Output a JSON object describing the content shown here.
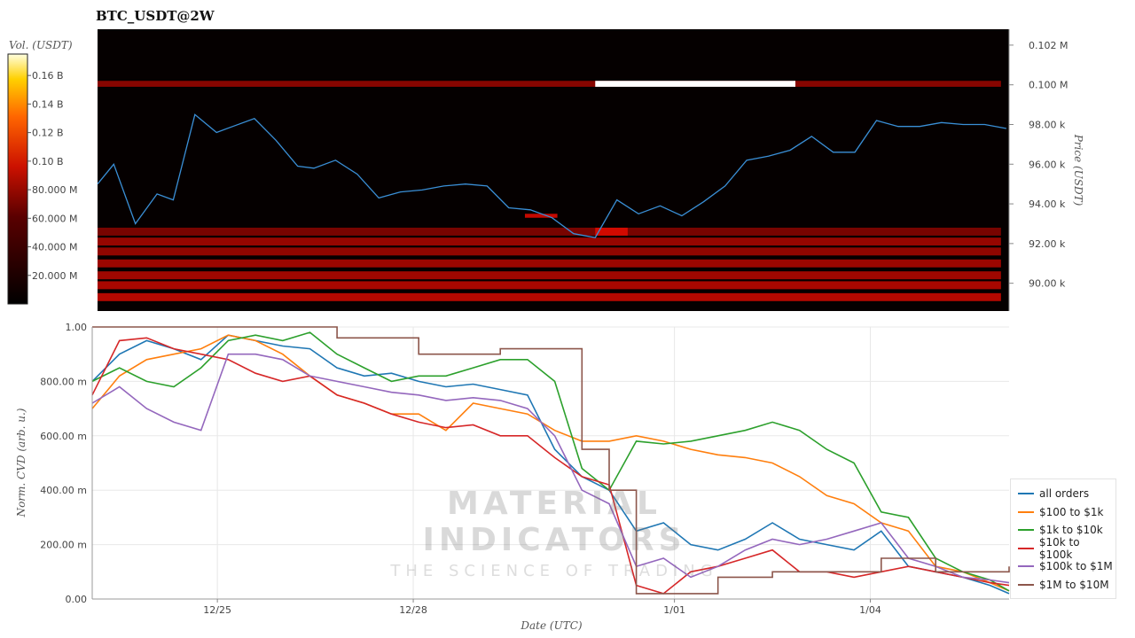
{
  "title": "BTC_USDT@2W",
  "colors": {
    "all_orders": "#1f77b4",
    "r100_1k": "#ff7f0e",
    "r1k_10k": "#2ca02c",
    "r10k_100k": "#d62728",
    "r100k_1M": "#9467bd",
    "r1M_10M": "#8c564b",
    "price_line": "#3a8fd6"
  },
  "watermark": {
    "main": "MATERIAL INDICATORS",
    "sub": "THE SCIENCE OF TRADING"
  },
  "chart_data": [
    {
      "type": "heatmap",
      "title": "BTC_USDT@2W",
      "ylabel": "Price (USDT)",
      "colorbar_label": "Vol. (USDT)",
      "colorbar_ticks": [
        "20.000 M",
        "40.000 M",
        "60.000 M",
        "80.000 M",
        "0.10 B",
        "0.12 B",
        "0.14 B",
        "0.16 B"
      ],
      "colorbar_range": [
        0,
        175000000
      ],
      "ylim": [
        88600,
        102800
      ],
      "ytick_labels": [
        "90.00 k",
        "92.00 k",
        "94.00 k",
        "96.00 k",
        "98.00 k",
        "0.100 M",
        "0.102 M"
      ],
      "ytick_values": [
        90000,
        92000,
        94000,
        96000,
        98000,
        100000,
        102000
      ],
      "x_date_range": [
        "2024-12-23T02:00",
        "2025-01-06T03:00"
      ],
      "price_line": {
        "x": [
          "12/23 02:00",
          "12/23 08:00",
          "12/23 16:00",
          "12/24 00:00",
          "12/24 06:00",
          "12/24 14:00",
          "12/24 22:00",
          "12/25 04:00",
          "12/25 12:00",
          "12/25 20:00",
          "12/26 04:00",
          "12/26 10:00",
          "12/26 18:00",
          "12/27 02:00",
          "12/27 10:00",
          "12/27 18:00",
          "12/28 02:00",
          "12/28 10:00",
          "12/28 18:00",
          "12/29 02:00",
          "12/29 10:00",
          "12/29 18:00",
          "12/30 02:00",
          "12/30 10:00",
          "12/30 18:00",
          "12/31 02:00",
          "12/31 10:00",
          "12/31 18:00",
          "01/01 02:00",
          "01/01 10:00",
          "01/01 18:00",
          "01/02 02:00",
          "01/02 10:00",
          "01/02 18:00",
          "01/03 02:00",
          "01/03 10:00",
          "01/03 18:00",
          "01/04 02:00",
          "01/04 10:00",
          "01/04 18:00",
          "01/05 02:00",
          "01/05 10:00",
          "01/05 18:00",
          "01/06 02:00"
        ],
        "y": [
          95000,
          96000,
          93000,
          94500,
          94200,
          98500,
          97600,
          97900,
          98300,
          97200,
          95900,
          95800,
          96200,
          95500,
          94300,
          94600,
          94700,
          94900,
          95000,
          94900,
          93800,
          93700,
          93300,
          92500,
          92300,
          94200,
          93500,
          93900,
          93400,
          94100,
          94900,
          96200,
          96400,
          96700,
          97400,
          96600,
          96600,
          98200,
          97900,
          97900,
          98100,
          98000,
          98000,
          97800
        ]
      },
      "heat_bands": [
        {
          "from": 99900,
          "to": 100200,
          "start": "12/23",
          "end": "01/06",
          "level": 0.25
        },
        {
          "from": 99900,
          "to": 100200,
          "start": "12/30 18:00",
          "end": "01/02 20:00",
          "level": 1.0
        },
        {
          "from": 91900,
          "to": 92300,
          "start": "12/23",
          "end": "01/06",
          "level": 0.3
        },
        {
          "from": 91400,
          "to": 91800,
          "start": "12/23",
          "end": "01/06",
          "level": 0.28
        },
        {
          "from": 90800,
          "to": 91200,
          "start": "12/23",
          "end": "01/06",
          "level": 0.32
        },
        {
          "from": 90200,
          "to": 90600,
          "start": "12/23",
          "end": "01/06",
          "level": 0.33
        },
        {
          "from": 89700,
          "to": 90100,
          "start": "12/23",
          "end": "01/06",
          "level": 0.36
        },
        {
          "from": 89100,
          "to": 89500,
          "start": "12/23",
          "end": "01/06",
          "level": 0.4
        },
        {
          "from": 92400,
          "to": 92800,
          "start": "12/23",
          "end": "01/06",
          "level": 0.2
        },
        {
          "from": 93300,
          "to": 93500,
          "start": "12/29 16:00",
          "end": "12/30 04:00",
          "level": 0.45
        },
        {
          "from": 92400,
          "to": 92800,
          "start": "12/30 18:00",
          "end": "12/31 06:00",
          "level": 0.5
        }
      ]
    },
    {
      "type": "line",
      "xlabel": "Date (UTC)",
      "ylabel": "Norm. CVD (arb. u.)",
      "ylim": [
        0,
        1
      ],
      "ytick_labels": [
        "0.00",
        "200.00 m",
        "400.00 m",
        "600.00 m",
        "800.00 m",
        "1.00"
      ],
      "ytick_values": [
        0,
        0.2,
        0.4,
        0.6,
        0.8,
        1.0
      ],
      "xtick_labels": [
        "12/25",
        "12/28",
        "1/01",
        "1/04"
      ],
      "xtick_values": [
        "2024-12-25",
        "2024-12-28",
        "2025-01-01",
        "2025-01-04"
      ],
      "x": [
        "12/23 02:00",
        "12/23 12:00",
        "12/23 22:00",
        "12/24 08:00",
        "12/24 18:00",
        "12/25 04:00",
        "12/25 14:00",
        "12/26 00:00",
        "12/26 10:00",
        "12/26 20:00",
        "12/27 06:00",
        "12/27 16:00",
        "12/28 02:00",
        "12/28 12:00",
        "12/28 22:00",
        "12/29 08:00",
        "12/29 18:00",
        "12/30 04:00",
        "12/30 14:00",
        "12/31 00:00",
        "12/31 10:00",
        "12/31 20:00",
        "01/01 06:00",
        "01/01 16:00",
        "01/02 02:00",
        "01/02 12:00",
        "01/02 22:00",
        "01/03 08:00",
        "01/03 18:00",
        "01/04 04:00",
        "01/04 14:00",
        "01/05 00:00",
        "01/05 10:00",
        "01/05 20:00",
        "01/06 03:00"
      ],
      "series": [
        {
          "name": "all orders",
          "color": "#1f77b4",
          "values": [
            0.8,
            0.9,
            0.95,
            0.92,
            0.88,
            0.97,
            0.95,
            0.93,
            0.92,
            0.85,
            0.82,
            0.83,
            0.8,
            0.78,
            0.79,
            0.77,
            0.75,
            0.55,
            0.45,
            0.4,
            0.25,
            0.28,
            0.2,
            0.18,
            0.22,
            0.28,
            0.22,
            0.2,
            0.18,
            0.25,
            0.12,
            0.1,
            0.08,
            0.05,
            0.02
          ]
        },
        {
          "name": "$100 to $1k",
          "color": "#ff7f0e",
          "values": [
            0.7,
            0.82,
            0.88,
            0.9,
            0.92,
            0.97,
            0.95,
            0.9,
            0.82,
            0.75,
            0.72,
            0.68,
            0.68,
            0.62,
            0.72,
            0.7,
            0.68,
            0.62,
            0.58,
            0.58,
            0.6,
            0.58,
            0.55,
            0.53,
            0.52,
            0.5,
            0.45,
            0.38,
            0.35,
            0.28,
            0.25,
            0.12,
            0.1,
            0.06,
            0.03
          ]
        },
        {
          "name": "$1k to $10k",
          "color": "#2ca02c",
          "values": [
            0.8,
            0.85,
            0.8,
            0.78,
            0.85,
            0.95,
            0.97,
            0.95,
            0.98,
            0.9,
            0.85,
            0.8,
            0.82,
            0.82,
            0.85,
            0.88,
            0.88,
            0.8,
            0.48,
            0.4,
            0.58,
            0.57,
            0.58,
            0.6,
            0.62,
            0.65,
            0.62,
            0.55,
            0.5,
            0.32,
            0.3,
            0.15,
            0.1,
            0.07,
            0.03
          ]
        },
        {
          "name": "$10k to $100k",
          "color": "#d62728",
          "values": [
            0.75,
            0.95,
            0.96,
            0.92,
            0.9,
            0.88,
            0.83,
            0.8,
            0.82,
            0.75,
            0.72,
            0.68,
            0.65,
            0.63,
            0.64,
            0.6,
            0.6,
            0.52,
            0.45,
            0.42,
            0.05,
            0.02,
            0.1,
            0.12,
            0.15,
            0.18,
            0.1,
            0.1,
            0.08,
            0.1,
            0.12,
            0.1,
            0.08,
            0.06,
            0.05
          ]
        },
        {
          "name": "$100k to $1M",
          "color": "#9467bd",
          "values": [
            0.72,
            0.78,
            0.7,
            0.65,
            0.62,
            0.9,
            0.9,
            0.88,
            0.82,
            0.8,
            0.78,
            0.76,
            0.75,
            0.73,
            0.74,
            0.73,
            0.7,
            0.6,
            0.4,
            0.35,
            0.12,
            0.15,
            0.08,
            0.12,
            0.18,
            0.22,
            0.2,
            0.22,
            0.25,
            0.28,
            0.15,
            0.12,
            0.08,
            0.07,
            0.06
          ]
        },
        {
          "name": "$1M to $10M",
          "color": "#8c564b",
          "values": [
            1.0,
            1.0,
            1.0,
            1.0,
            1.0,
            1.0,
            1.0,
            1.0,
            1.0,
            0.96,
            0.96,
            0.96,
            0.9,
            0.9,
            0.9,
            0.92,
            0.92,
            0.92,
            0.55,
            0.4,
            0.02,
            0.02,
            0.02,
            0.08,
            0.08,
            0.1,
            0.1,
            0.1,
            0.1,
            0.15,
            0.15,
            0.1,
            0.1,
            0.1,
            0.12
          ]
        }
      ]
    }
  ]
}
